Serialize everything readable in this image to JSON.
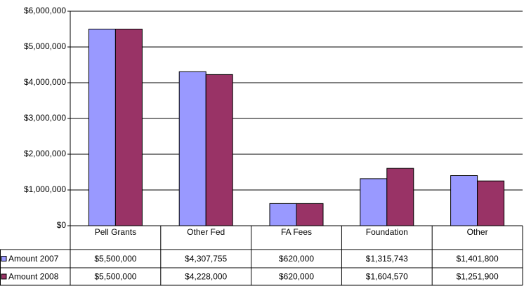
{
  "chart_data": {
    "type": "bar",
    "categories": [
      "Pell Grants",
      "Other Fed",
      "FA Fees",
      "Foundation",
      "Other"
    ],
    "series": [
      {
        "name": "Amount 2007",
        "color": "#9999ff",
        "values": [
          5500000,
          4307755,
          620000,
          1315743,
          1401800
        ],
        "value_labels": [
          "$5,500,000",
          "$4,307,755",
          "$620,000",
          "$1,315,743",
          "$1,401,800"
        ]
      },
      {
        "name": "Amount 2008",
        "color": "#993366",
        "values": [
          5500000,
          4228000,
          620000,
          1604570,
          1251900
        ],
        "value_labels": [
          "$5,500,000",
          "$4,228,000",
          "$620,000",
          "$1,604,570",
          "$1,251,900"
        ]
      }
    ],
    "ylim": [
      0,
      6000000
    ],
    "yticks": [
      {
        "value": 0,
        "label": "$0"
      },
      {
        "value": 1000000,
        "label": "$1,000,000"
      },
      {
        "value": 2000000,
        "label": "$2,000,000"
      },
      {
        "value": 3000000,
        "label": "$3,000,000"
      },
      {
        "value": 4000000,
        "label": "$4,000,000"
      },
      {
        "value": 5000000,
        "label": "$5,000,000"
      },
      {
        "value": 6000000,
        "label": "$6,000,000"
      }
    ],
    "grid": true
  }
}
